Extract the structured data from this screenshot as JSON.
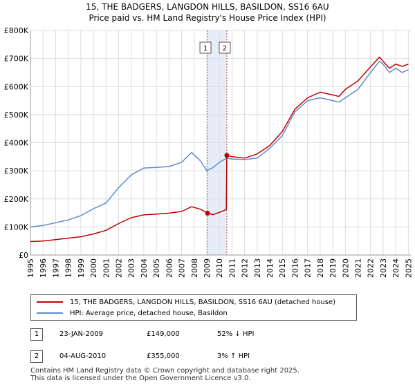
{
  "title": {
    "line1": "15, THE BADGERS, LANGDON HILLS, BASILDON, SS16 6AU",
    "line2": "Price paid vs. HM Land Registry's House Price Index (HPI)"
  },
  "colors": {
    "property": "#c00000",
    "hpi": "#5b8ccc",
    "shade": "#e6ecf8",
    "grid": "#dddddd",
    "plot_bg": "#ffffff"
  },
  "chart_data": {
    "type": "line",
    "title": "Price paid vs. HM Land Registry's House Price Index (HPI)",
    "xlabel": "",
    "ylabel": "",
    "xlim": [
      1995,
      2025.2
    ],
    "ylim": [
      0,
      800000
    ],
    "grid": true,
    "x_ticks": [
      "1995",
      "1996",
      "1997",
      "1998",
      "1999",
      "2000",
      "2001",
      "2002",
      "2003",
      "2004",
      "2005",
      "2006",
      "2007",
      "2008",
      "2009",
      "2010",
      "2011",
      "2012",
      "2013",
      "2014",
      "2015",
      "2016",
      "2017",
      "2018",
      "2019",
      "2020",
      "2021",
      "2022",
      "2023",
      "2024",
      "2025"
    ],
    "y_ticks": [
      {
        "value": 0,
        "label": "£0"
      },
      {
        "value": 100000,
        "label": "£100K"
      },
      {
        "value": 200000,
        "label": "£200K"
      },
      {
        "value": 300000,
        "label": "£300K"
      },
      {
        "value": 400000,
        "label": "£400K"
      },
      {
        "value": 500000,
        "label": "£500K"
      },
      {
        "value": 600000,
        "label": "£600K"
      },
      {
        "value": 700000,
        "label": "£700K"
      },
      {
        "value": 800000,
        "label": "£800K"
      }
    ],
    "shaded_range": [
      2009.06,
      2010.59
    ],
    "series": [
      {
        "name": "15, THE BADGERS, LANGDON HILLS, BASILDON, SS16 6AU (detached house)",
        "color": "#c00000",
        "x": [
          1995.0,
          1996.0,
          1997.0,
          1998.0,
          1999.0,
          2000.0,
          2001.0,
          2002.0,
          2003.0,
          2004.0,
          2005.0,
          2006.0,
          2007.0,
          2007.8,
          2008.5,
          2009.06,
          2009.5,
          2010.0,
          2010.55,
          2010.59,
          2011.0,
          2012.0,
          2013.0,
          2014.0,
          2015.0,
          2016.0,
          2017.0,
          2018.0,
          2019.0,
          2019.5,
          2020.0,
          2021.0,
          2022.0,
          2022.7,
          2023.0,
          2023.5,
          2024.0,
          2024.5,
          2025.0
        ],
        "y": [
          48000,
          50000,
          55000,
          60000,
          65000,
          75000,
          88000,
          112000,
          133000,
          143000,
          146000,
          149000,
          155000,
          172000,
          163000,
          149000,
          144000,
          152000,
          162000,
          355000,
          350000,
          345000,
          360000,
          390000,
          440000,
          520000,
          560000,
          580000,
          570000,
          565000,
          590000,
          620000,
          670000,
          705000,
          690000,
          665000,
          680000,
          672000,
          680000
        ]
      },
      {
        "name": "HPI: Average price, detached house, Basildon",
        "color": "#5b8ccc",
        "x": [
          1995.0,
          1996.0,
          1997.0,
          1998.0,
          1999.0,
          2000.0,
          2001.0,
          2002.0,
          2003.0,
          2004.0,
          2005.0,
          2006.0,
          2007.0,
          2007.8,
          2008.5,
          2009.0,
          2009.5,
          2010.0,
          2010.59,
          2011.0,
          2012.0,
          2013.0,
          2014.0,
          2015.0,
          2016.0,
          2017.0,
          2018.0,
          2019.0,
          2019.5,
          2020.0,
          2021.0,
          2022.0,
          2022.7,
          2023.0,
          2023.5,
          2024.0,
          2024.5,
          2025.0
        ],
        "y": [
          100000,
          105000,
          115000,
          125000,
          140000,
          165000,
          185000,
          240000,
          285000,
          310000,
          312000,
          315000,
          330000,
          365000,
          335000,
          300000,
          312000,
          330000,
          345000,
          342000,
          340000,
          345000,
          380000,
          425000,
          510000,
          550000,
          560000,
          550000,
          545000,
          560000,
          590000,
          650000,
          690000,
          680000,
          650000,
          665000,
          650000,
          660000
        ]
      }
    ],
    "annotations": [
      {
        "label": "1",
        "x": 2009.06,
        "y": 149000
      },
      {
        "label": "2",
        "x": 2010.59,
        "y": 355000
      }
    ]
  },
  "legend": {
    "items": [
      {
        "label": "15, THE BADGERS, LANGDON HILLS, BASILDON, SS16 6AU (detached house)",
        "color": "#c00000"
      },
      {
        "label": "HPI: Average price, detached house, Basildon",
        "color": "#5b8ccc"
      }
    ]
  },
  "sales": [
    {
      "num": "1",
      "date": "23-JAN-2009",
      "price": "£149,000",
      "hpi": "52% ↓ HPI"
    },
    {
      "num": "2",
      "date": "04-AUG-2010",
      "price": "£355,000",
      "hpi": "3% ↑ HPI"
    }
  ],
  "footer": {
    "line1": "Contains HM Land Registry data © Crown copyright and database right 2025.",
    "line2": "This data is licensed under the Open Government Licence v3.0."
  }
}
